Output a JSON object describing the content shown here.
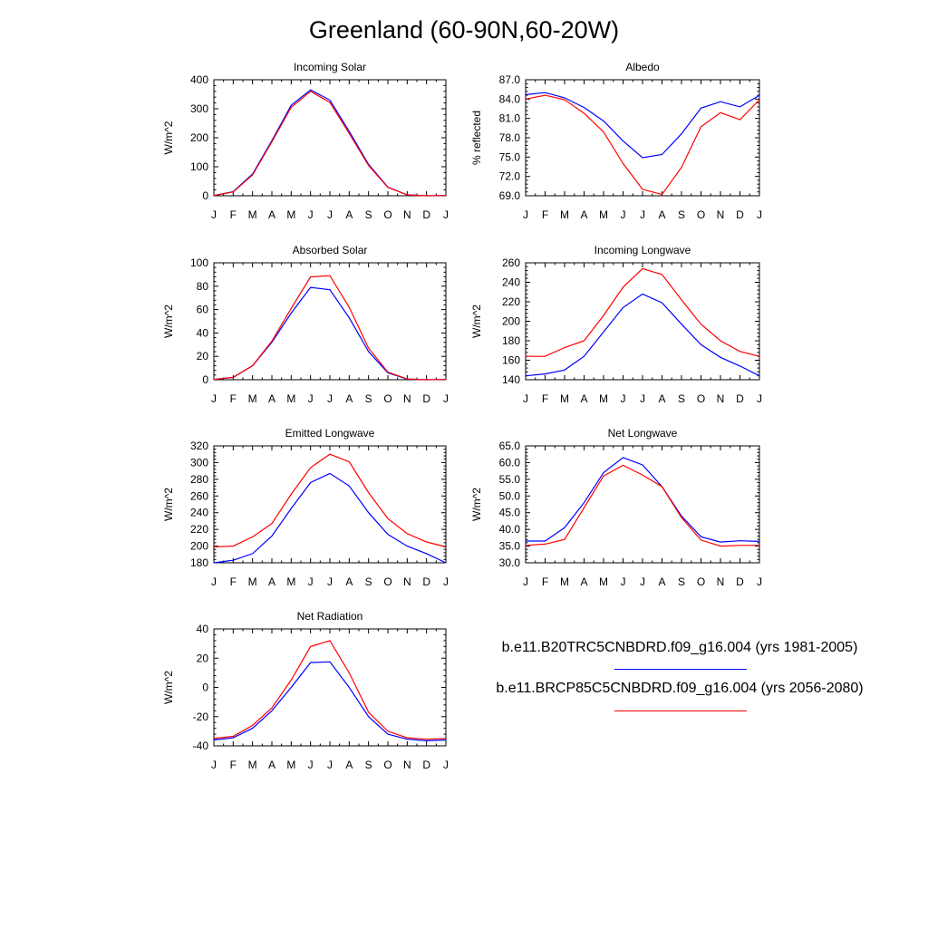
{
  "title": "Greenland (60-90N,60-20W)",
  "colors": {
    "case1": "#0000ff",
    "case2": "#ff0000",
    "axis": "#000000"
  },
  "legend": [
    {
      "label": "b.e11.B20TRC5CNBDRD.f09_g16.004 (yrs 1981-2005)",
      "color": "#0000ff"
    },
    {
      "label": "b.e11.BRCP85C5CNBDRD.f09_g16.004 (yrs 2056-2080)",
      "color": "#ff0000"
    }
  ],
  "chart_data": [
    {
      "type": "line",
      "title": "Incoming Solar",
      "ylabel": "W/m^2",
      "categories": [
        "J",
        "F",
        "M",
        "A",
        "M",
        "J",
        "J",
        "A",
        "S",
        "O",
        "N",
        "D",
        "J"
      ],
      "ylim": [
        0,
        400
      ],
      "yticks": [
        "0",
        "100",
        "200",
        "300",
        "400"
      ],
      "series": [
        {
          "name": "b.e11.B20TRC5CNBDRD.f09_g16.004 (yrs 1981-2005)",
          "color": "#0000ff",
          "values": [
            1,
            14,
            75,
            190,
            312,
            365,
            330,
            222,
            108,
            30,
            3,
            0,
            1
          ]
        },
        {
          "name": "b.e11.BRCP85C5CNBDRD.f09_g16.004 (yrs 2056-2080)",
          "color": "#ff0000",
          "values": [
            1,
            13,
            72,
            186,
            305,
            360,
            322,
            215,
            104,
            29,
            3,
            0,
            1
          ]
        }
      ]
    },
    {
      "type": "line",
      "title": "Albedo",
      "ylabel": "% reflected",
      "categories": [
        "J",
        "F",
        "M",
        "A",
        "M",
        "J",
        "J",
        "A",
        "S",
        "O",
        "N",
        "D",
        "J"
      ],
      "ylim": [
        69.0,
        87.0
      ],
      "yticks": [
        "69.0",
        "72.0",
        "75.0",
        "78.0",
        "81.0",
        "84.0",
        "87.0"
      ],
      "series": [
        {
          "name": "b.e11.B20TRC5CNBDRD.f09_g16.004 (yrs 1981-2005)",
          "color": "#0000ff",
          "values": [
            84.7,
            85.0,
            84.2,
            82.7,
            80.6,
            77.5,
            74.9,
            75.4,
            78.6,
            82.6,
            83.6,
            82.8,
            84.6
          ]
        },
        {
          "name": "b.e11.BRCP85C5CNBDRD.f09_g16.004 (yrs 2056-2080)",
          "color": "#ff0000",
          "values": [
            84.0,
            84.6,
            83.9,
            81.8,
            78.9,
            74.0,
            70.0,
            69.2,
            73.4,
            79.7,
            81.9,
            80.8,
            83.9
          ]
        }
      ]
    },
    {
      "type": "line",
      "title": "Absorbed Solar",
      "ylabel": "W/m^2",
      "categories": [
        "J",
        "F",
        "M",
        "A",
        "M",
        "J",
        "J",
        "A",
        "S",
        "O",
        "N",
        "D",
        "J"
      ],
      "ylim": [
        0,
        100
      ],
      "yticks": [
        "0",
        "20",
        "40",
        "60",
        "80",
        "100"
      ],
      "series": [
        {
          "name": "b.e11.B20TRC5CNBDRD.f09_g16.004 (yrs 1981-2005)",
          "color": "#0000ff",
          "values": [
            0.2,
            2,
            12,
            32,
            57,
            79,
            77,
            53,
            24,
            6,
            0.5,
            0,
            0.2
          ]
        },
        {
          "name": "b.e11.BRCP85C5CNBDRD.f09_g16.004 (yrs 2056-2080)",
          "color": "#ff0000",
          "values": [
            0.2,
            2,
            12,
            33,
            61,
            88,
            89,
            62,
            27,
            6.5,
            0.6,
            0,
            0.2
          ]
        }
      ]
    },
    {
      "type": "line",
      "title": "Incoming Longwave",
      "ylabel": "W/m^2",
      "categories": [
        "J",
        "F",
        "M",
        "A",
        "M",
        "J",
        "J",
        "A",
        "S",
        "O",
        "N",
        "D",
        "J"
      ],
      "ylim": [
        140,
        260
      ],
      "yticks": [
        "140",
        "160",
        "180",
        "200",
        "220",
        "240",
        "260"
      ],
      "series": [
        {
          "name": "b.e11.B20TRC5CNBDRD.f09_g16.004 (yrs 1981-2005)",
          "color": "#0000ff",
          "values": [
            144,
            146,
            150,
            164,
            189,
            214,
            228,
            219,
            197,
            176,
            163,
            154,
            144
          ]
        },
        {
          "name": "b.e11.BRCP85C5CNBDRD.f09_g16.004 (yrs 2056-2080)",
          "color": "#ff0000",
          "values": [
            164,
            164,
            173,
            180,
            206,
            235,
            254,
            248,
            222,
            197,
            180,
            169,
            164
          ]
        }
      ]
    },
    {
      "type": "line",
      "title": "Emitted Longwave",
      "ylabel": "W/m^2",
      "categories": [
        "J",
        "F",
        "M",
        "A",
        "M",
        "J",
        "J",
        "A",
        "S",
        "O",
        "N",
        "D",
        "J"
      ],
      "ylim": [
        180,
        320
      ],
      "yticks": [
        "180",
        "200",
        "220",
        "240",
        "260",
        "280",
        "300",
        "320"
      ],
      "series": [
        {
          "name": "b.e11.B20TRC5CNBDRD.f09_g16.004 (yrs 1981-2005)",
          "color": "#0000ff",
          "values": [
            180,
            183,
            191,
            212,
            245,
            276,
            287,
            272,
            240,
            214,
            200,
            191,
            180
          ]
        },
        {
          "name": "b.e11.BRCP85C5CNBDRD.f09_g16.004 (yrs 2056-2080)",
          "color": "#ff0000",
          "values": [
            199,
            200,
            211,
            227,
            262,
            294,
            310,
            301,
            264,
            233,
            215,
            205,
            199
          ]
        }
      ]
    },
    {
      "type": "line",
      "title": "Net Longwave",
      "ylabel": "W/m^2",
      "categories": [
        "J",
        "F",
        "M",
        "A",
        "M",
        "J",
        "J",
        "A",
        "S",
        "O",
        "N",
        "D",
        "J"
      ],
      "ylim": [
        30.0,
        65.0
      ],
      "yticks": [
        "30.0",
        "35.0",
        "40.0",
        "45.0",
        "50.0",
        "55.0",
        "60.0",
        "65.0"
      ],
      "series": [
        {
          "name": "b.e11.B20TRC5CNBDRD.f09_g16.004 (yrs 1981-2005)",
          "color": "#0000ff",
          "values": [
            36.5,
            36.5,
            40.5,
            48.0,
            57.0,
            61.5,
            59.3,
            52.8,
            44.0,
            37.8,
            36.2,
            36.6,
            36.4
          ]
        },
        {
          "name": "b.e11.BRCP85C5CNBDRD.f09_g16.004 (yrs 2056-2080)",
          "color": "#ff0000",
          "values": [
            35.2,
            35.6,
            37.0,
            46.5,
            56.0,
            59.2,
            56.3,
            52.8,
            43.5,
            36.8,
            35.0,
            35.2,
            35.2
          ]
        }
      ]
    },
    {
      "type": "line",
      "title": "Net Radiation",
      "ylabel": "W/m^2",
      "categories": [
        "J",
        "F",
        "M",
        "A",
        "M",
        "J",
        "J",
        "A",
        "S",
        "O",
        "N",
        "D",
        "J"
      ],
      "ylim": [
        -40,
        40
      ],
      "yticks": [
        "-40",
        "-20",
        "0",
        "20",
        "40"
      ],
      "series": [
        {
          "name": "b.e11.B20TRC5CNBDRD.f09_g16.004 (yrs 1981-2005)",
          "color": "#0000ff",
          "values": [
            -36,
            -34.5,
            -28,
            -16,
            0,
            17,
            17.5,
            0,
            -20,
            -32,
            -35.5,
            -36.5,
            -36
          ]
        },
        {
          "name": "b.e11.BRCP85C5CNBDRD.f09_g16.004 (yrs 2056-2080)",
          "color": "#ff0000",
          "values": [
            -35,
            -33.5,
            -26,
            -14,
            5,
            28,
            32,
            10,
            -17,
            -30,
            -34.5,
            -35.5,
            -35
          ]
        }
      ]
    }
  ]
}
